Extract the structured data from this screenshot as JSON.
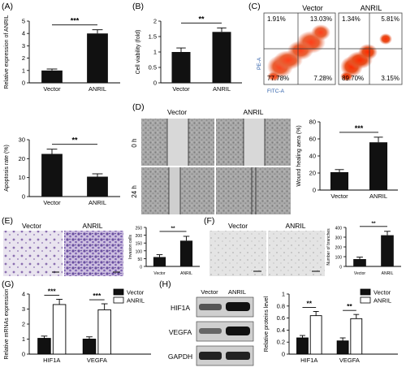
{
  "panels": {
    "A": {
      "letter": "(A)"
    },
    "B": {
      "letter": "(B)"
    },
    "C": {
      "letter": "(C)"
    },
    "D": {
      "letter": "(D)"
    },
    "E": {
      "letter": "(E)"
    },
    "F": {
      "letter": "(F)"
    },
    "G": {
      "letter": "(G)"
    },
    "H": {
      "letter": "(H)"
    }
  },
  "flow": {
    "groups": [
      "Vector",
      "ANRIL"
    ],
    "xlabel": "FITC-A",
    "ylabel": "PE-A",
    "quadrants": [
      {
        "ul": "1.91%",
        "ur": "13.03%",
        "ll": "77.78%",
        "lr": "7.28%"
      },
      {
        "ul": "1.34%",
        "ur": "5.81%",
        "ll": "89.70%",
        "lr": "3.15%"
      }
    ]
  },
  "wound": {
    "col_labels": [
      "Vector",
      "ANRIL"
    ],
    "row_labels": [
      "0 h",
      "24 h"
    ]
  },
  "micro_E": {
    "labels": [
      "Vector",
      "ANRIL"
    ]
  },
  "micro_F": {
    "labels": [
      "Vector",
      "ANRIL"
    ]
  },
  "western": {
    "col_labels": [
      "Vector",
      "ANRIL"
    ],
    "row_labels": [
      "HIF1A",
      "VEGFA",
      "GAPDH"
    ]
  },
  "legend_colors": {
    "vector": "#111111",
    "anril": "#ffffff"
  },
  "chart_data": [
    {
      "id": "A",
      "type": "bar",
      "categories": [
        "Vector",
        "ANRIL"
      ],
      "values": [
        1.0,
        4.0
      ],
      "errors": [
        0.12,
        0.3
      ],
      "ylabel": "Relative expression of ANRIL",
      "ylim": [
        0,
        5
      ],
      "yticks": [
        0,
        1,
        2,
        3,
        4,
        5
      ],
      "sig": "***"
    },
    {
      "id": "B",
      "type": "bar",
      "categories": [
        "Vector",
        "ANRIL"
      ],
      "values": [
        1.0,
        1.65
      ],
      "errors": [
        0.13,
        0.13
      ],
      "ylabel": "Cell viability (fold)",
      "ylim": [
        0,
        2.0
      ],
      "yticks": [
        0.0,
        0.5,
        1.0,
        1.5,
        2.0
      ],
      "sig": "**"
    },
    {
      "id": "C",
      "type": "bar",
      "categories": [
        "Vector",
        "ANRIL"
      ],
      "values": [
        22.5,
        10.5
      ],
      "errors": [
        2.5,
        1.5
      ],
      "ylabel": "Apoptosis rate (%)",
      "ylim": [
        0,
        30
      ],
      "yticks": [
        0,
        10,
        20,
        30
      ],
      "sig": "**"
    },
    {
      "id": "D",
      "type": "bar",
      "categories": [
        "Vector",
        "ANRIL"
      ],
      "values": [
        21,
        56
      ],
      "errors": [
        3,
        6
      ],
      "ylabel": "Wound healing aera (%)",
      "ylim": [
        0,
        80
      ],
      "yticks": [
        0,
        20,
        40,
        60,
        80
      ],
      "sig": "***"
    },
    {
      "id": "E",
      "type": "bar",
      "categories": [
        "Vector",
        "ANRIL"
      ],
      "values": [
        60,
        165
      ],
      "errors": [
        15,
        28
      ],
      "ylabel": "Invasion cells",
      "ylim": [
        0,
        250
      ],
      "yticks": [
        0,
        50,
        100,
        150,
        200,
        250
      ],
      "sig": "**"
    },
    {
      "id": "F",
      "type": "bar",
      "categories": [
        "Vector",
        "ANRIL"
      ],
      "values": [
        75,
        320
      ],
      "errors": [
        20,
        40
      ],
      "ylabel": "Number of branches",
      "ylim": [
        0,
        400
      ],
      "yticks": [
        0,
        100,
        200,
        300,
        400
      ],
      "sig": "**"
    },
    {
      "id": "G",
      "type": "bar",
      "categories": [
        "HIF1A",
        "VEGFA"
      ],
      "series": [
        {
          "name": "Vector",
          "values": [
            1.05,
            1.0
          ],
          "errors": [
            0.15,
            0.15
          ]
        },
        {
          "name": "ANRIL",
          "values": [
            3.3,
            2.95
          ],
          "errors": [
            0.35,
            0.4
          ]
        }
      ],
      "ylabel": "Relative mRNAs expression",
      "ylim": [
        0,
        4
      ],
      "yticks": [
        0,
        1,
        2,
        3,
        4
      ],
      "sig": [
        "***",
        "***"
      ],
      "legend": "top-right"
    },
    {
      "id": "H",
      "type": "bar",
      "categories": [
        "HIF1A",
        "VEGFA"
      ],
      "series": [
        {
          "name": "Vector",
          "values": [
            0.27,
            0.22
          ],
          "errors": [
            0.04,
            0.05
          ]
        },
        {
          "name": "ANRIL",
          "values": [
            0.64,
            0.59
          ],
          "errors": [
            0.07,
            0.07
          ]
        }
      ],
      "ylabel": "Relative proteins level",
      "ylim": [
        0,
        1.0
      ],
      "yticks": [
        0.0,
        0.2,
        0.4,
        0.6,
        0.8,
        1.0
      ],
      "sig": [
        "**",
        "**"
      ],
      "legend": "top-right"
    }
  ]
}
